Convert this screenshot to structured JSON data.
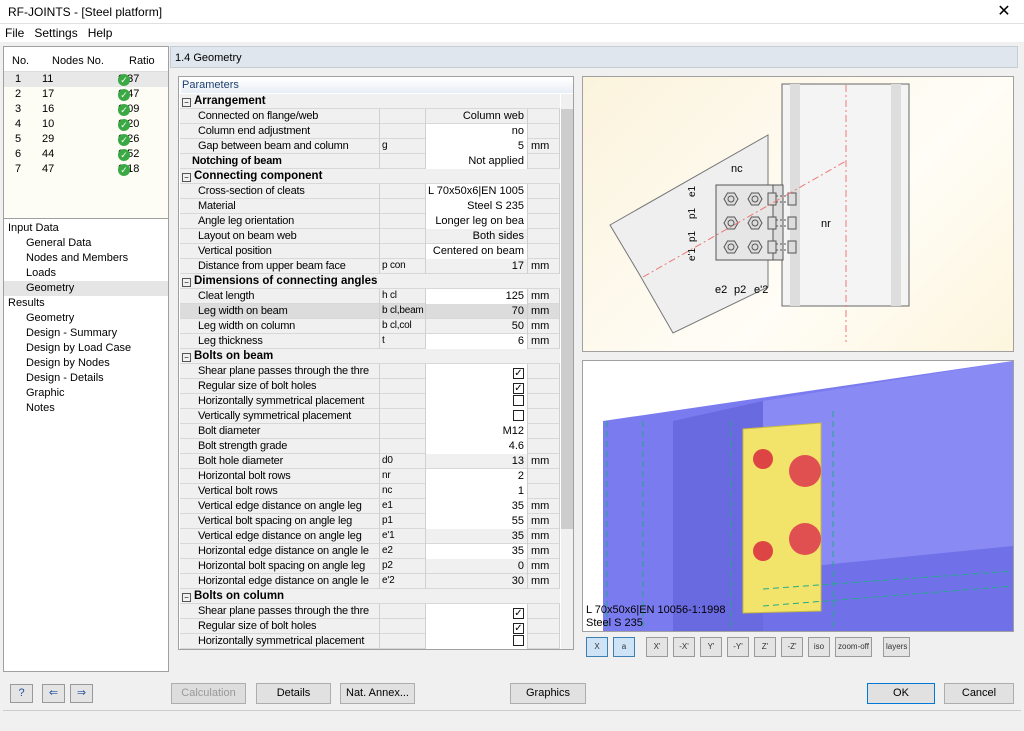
{
  "window": {
    "title": "RF-JOINTS - [Steel platform]",
    "close": "✕"
  },
  "menu": [
    "File",
    "Settings",
    "Help"
  ],
  "nodes": {
    "headers": [
      "No.",
      "Nodes No.",
      "Ratio"
    ],
    "rows": [
      [
        "1",
        "11",
        "0.37"
      ],
      [
        "2",
        "17",
        "0.47"
      ],
      [
        "3",
        "16",
        "0.09"
      ],
      [
        "4",
        "10",
        "0.20"
      ],
      [
        "5",
        "29",
        "0.26"
      ],
      [
        "6",
        "44",
        "0.52"
      ],
      [
        "7",
        "47",
        "0.18"
      ]
    ]
  },
  "tree": [
    {
      "label": "Input Data",
      "level": 0
    },
    {
      "label": "General Data",
      "level": 1
    },
    {
      "label": "Nodes and Members",
      "level": 1
    },
    {
      "label": "Loads",
      "level": 1
    },
    {
      "label": "Geometry",
      "level": 1,
      "selected": true
    },
    {
      "label": "Results",
      "level": 0
    },
    {
      "label": "Geometry",
      "level": 1
    },
    {
      "label": "Design - Summary",
      "level": 1
    },
    {
      "label": "Design by Load Case",
      "level": 1
    },
    {
      "label": "Design by Nodes",
      "level": 1
    },
    {
      "label": "Design - Details",
      "level": 1
    },
    {
      "label": "Graphic",
      "level": 1
    },
    {
      "label": "Notes",
      "level": 1
    }
  ],
  "section_title": "1.4 Geometry",
  "params_label": "Parameters",
  "params": [
    {
      "t": "grp",
      "label": "Arrangement"
    },
    {
      "t": "item",
      "label": "Connected on flange/web",
      "sym": "",
      "val": "Column web",
      "unit": "",
      "w": false
    },
    {
      "t": "item",
      "label": "Column end adjustment",
      "sym": "",
      "val": "no",
      "unit": "",
      "w": true
    },
    {
      "t": "item",
      "label": "Gap between beam and column",
      "sym": "g",
      "val": "5",
      "unit": "mm",
      "w": true
    },
    {
      "t": "bold",
      "label": "Notching of beam",
      "sym": "",
      "val": "Not applied",
      "unit": "",
      "w": true
    },
    {
      "t": "grp",
      "label": "Connecting component"
    },
    {
      "t": "item",
      "label": "Cross-section of cleats",
      "sym": "",
      "val": "L 70x50x6|EN 1005",
      "unit": "",
      "w": true
    },
    {
      "t": "item",
      "label": "Material",
      "sym": "",
      "val": "Steel S 235",
      "unit": "",
      "w": true
    },
    {
      "t": "item",
      "label": "Angle leg orientation",
      "sym": "",
      "val": "Longer leg on bea",
      "unit": "",
      "w": true
    },
    {
      "t": "item",
      "label": "Layout on beam web",
      "sym": "",
      "val": "Both sides",
      "unit": "",
      "w": false
    },
    {
      "t": "item",
      "label": "Vertical position",
      "sym": "",
      "val": "Centered on beam",
      "unit": "",
      "w": true
    },
    {
      "t": "item",
      "label": "Distance from upper beam face",
      "sym": "p con",
      "val": "17",
      "unit": "mm",
      "w": false
    },
    {
      "t": "grp",
      "label": "Dimensions of connecting angles"
    },
    {
      "t": "item",
      "label": "Cleat length",
      "sym": "h cl",
      "val": "125",
      "unit": "mm",
      "w": true
    },
    {
      "t": "item",
      "label": "Leg width on beam",
      "sym": "b cl,beam",
      "val": "70",
      "unit": "mm",
      "w": false,
      "hl": true
    },
    {
      "t": "item",
      "label": "Leg width on column",
      "sym": "b cl,col",
      "val": "50",
      "unit": "mm",
      "w": false
    },
    {
      "t": "item",
      "label": "Leg thickness",
      "sym": "t",
      "val": "6",
      "unit": "mm",
      "w": true
    },
    {
      "t": "grp",
      "label": "Bolts on beam"
    },
    {
      "t": "item",
      "label": "Shear plane passes through the thre",
      "sym": "",
      "check": true,
      "unit": "",
      "w": true
    },
    {
      "t": "item",
      "label": "Regular size of bolt holes",
      "sym": "",
      "check": true,
      "unit": "",
      "w": true
    },
    {
      "t": "item",
      "label": "Horizontally symmetrical placement",
      "sym": "",
      "check": false,
      "unit": "",
      "w": true
    },
    {
      "t": "item",
      "label": "Vertically symmetrical placement",
      "sym": "",
      "check": false,
      "unit": "",
      "w": true
    },
    {
      "t": "item",
      "label": "Bolt diameter",
      "sym": "",
      "val": "M12",
      "unit": "",
      "w": true
    },
    {
      "t": "item",
      "label": "Bolt strength grade",
      "sym": "",
      "val": "4.6",
      "unit": "",
      "w": true
    },
    {
      "t": "item",
      "label": "Bolt hole diameter",
      "sym": "d0",
      "val": "13",
      "unit": "mm",
      "w": false
    },
    {
      "t": "item",
      "label": "Horizontal bolt rows",
      "sym": "nr",
      "val": "2",
      "unit": "",
      "w": true
    },
    {
      "t": "item",
      "label": "Vertical bolt rows",
      "sym": "nc",
      "val": "1",
      "unit": "",
      "w": true
    },
    {
      "t": "item",
      "label": "Vertical edge distance on angle leg",
      "sym": "e1",
      "val": "35",
      "unit": "mm",
      "w": true
    },
    {
      "t": "item",
      "label": "Vertical bolt spacing on angle leg",
      "sym": "p1",
      "val": "55",
      "unit": "mm",
      "w": true
    },
    {
      "t": "item",
      "label": "Vertical edge distance on angle leg",
      "sym": "e'1",
      "val": "35",
      "unit": "mm",
      "w": false
    },
    {
      "t": "item",
      "label": "Horizontal edge distance on angle le",
      "sym": "e2",
      "val": "35",
      "unit": "mm",
      "w": true
    },
    {
      "t": "item",
      "label": "Horizontal bolt spacing on angle leg",
      "sym": "p2",
      "val": "0",
      "unit": "mm",
      "w": false
    },
    {
      "t": "item",
      "label": "Horizontal edge distance on angle le",
      "sym": "e'2",
      "val": "30",
      "unit": "mm",
      "w": false
    },
    {
      "t": "grp",
      "label": "Bolts on column"
    },
    {
      "t": "item",
      "label": "Shear plane passes through the thre",
      "sym": "",
      "check": true,
      "unit": "",
      "w": true
    },
    {
      "t": "item",
      "label": "Regular size of bolt holes",
      "sym": "",
      "check": true,
      "unit": "",
      "w": true
    },
    {
      "t": "item",
      "label": "Horizontally symmetrical placement",
      "sym": "",
      "check": false,
      "unit": "",
      "w": true
    }
  ],
  "diagram_labels": {
    "nc": "nc",
    "nr": "nr",
    "e1": "e1",
    "p1": "p1",
    "e1p": "e'1",
    "e2": "e2",
    "p2": "p2",
    "e2p": "e'2"
  },
  "view3d": {
    "info_line1": "L 70x50x6|EN 10056-1:1998",
    "info_line2": "Steel S 235"
  },
  "graphic_toolbar": [
    "X",
    "a",
    "X'",
    "-X'",
    "Y'",
    "-Y'",
    "Z'",
    "-Z'",
    "iso",
    "zoom-off",
    "layers"
  ],
  "buttons": {
    "calculation": "Calculation",
    "details": "Details",
    "nat_annex": "Nat. Annex...",
    "graphics": "Graphics",
    "ok": "OK",
    "cancel": "Cancel"
  },
  "colors": {
    "ok_check": "#3aa843",
    "beam_3d": "#7b7bf0",
    "cleat": "#f2e46a",
    "bolt": "#e05050"
  }
}
